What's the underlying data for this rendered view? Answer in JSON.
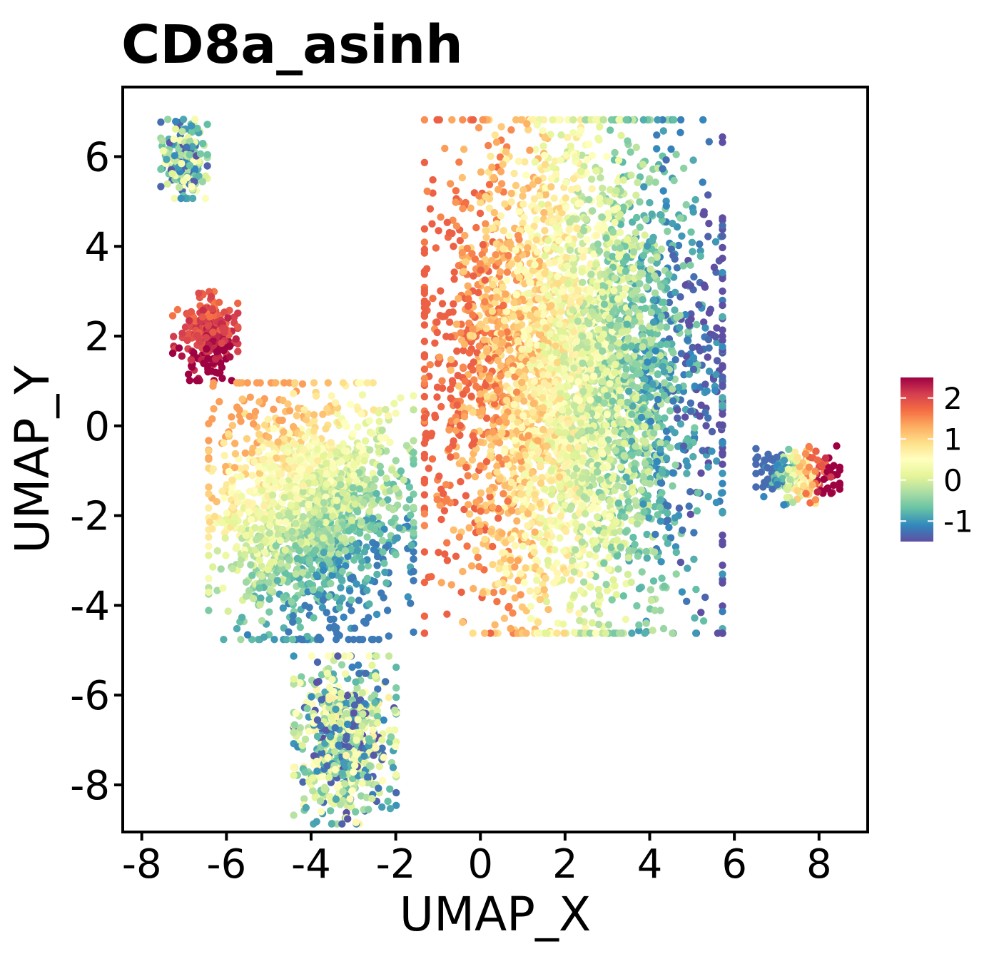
{
  "chart_data": {
    "type": "scatter",
    "title": "CD8a_asinh",
    "xlabel": "UMAP_X",
    "ylabel": "UMAP_Y",
    "xlim": [
      -8.45,
      9.15
    ],
    "ylim": [
      -9.05,
      7.55
    ],
    "x_ticks": [
      -8,
      -6,
      -4,
      -2,
      0,
      2,
      4,
      6,
      8
    ],
    "y_ticks": [
      -8,
      -6,
      -4,
      -2,
      0,
      2,
      4,
      6
    ],
    "x_tick_labels": [
      "-8",
      "-6",
      "-4",
      "-2",
      "0",
      "2",
      "4",
      "6",
      "8"
    ],
    "y_tick_labels": [
      "-8",
      "-6",
      "-4",
      "-2",
      "0",
      "2",
      "4",
      "6"
    ],
    "grid": false,
    "colorbar": {
      "placement": "right",
      "range": [
        -1.5,
        2.5
      ],
      "ticks": [
        2,
        1,
        0,
        -1
      ],
      "tick_labels": [
        "2",
        "1",
        "0",
        "-1"
      ],
      "colormap": "Spectral (reversed)",
      "colors": [
        "#5e4fa2",
        "#3288bd",
        "#66c2a5",
        "#abdda4",
        "#e6f598",
        "#ffffbf",
        "#fee08b",
        "#fdae61",
        "#f46d43",
        "#d53e4f",
        "#9e0142"
      ]
    },
    "clusters": [
      {
        "label": "top-left small cluster",
        "center": [
          -7.0,
          5.95
        ],
        "spread": [
          0.25,
          0.4
        ],
        "value_range": [
          -1.5,
          0.8
        ],
        "approx_points": 220
      },
      {
        "label": "high-expression cluster",
        "center": [
          -6.5,
          2.0
        ],
        "spread": [
          0.35,
          0.45
        ],
        "value_range": [
          0.8,
          2.5
        ],
        "approx_points": 260
      },
      {
        "label": "left large cluster",
        "center": [
          -4.0,
          -1.9
        ],
        "spread": [
          1.1,
          1.3
        ],
        "value_range": [
          -1.2,
          1.4
        ],
        "approx_points": 1600
      },
      {
        "label": "bottom cluster",
        "center": [
          -3.2,
          -7.0
        ],
        "spread": [
          0.55,
          0.85
        ],
        "value_range": [
          -1.5,
          1.0
        ],
        "approx_points": 650
      },
      {
        "label": "main cluster",
        "center": [
          2.2,
          1.1
        ],
        "spread": [
          1.6,
          2.6
        ],
        "value_range": [
          -1.5,
          1.8
        ],
        "approx_points": 4200
      },
      {
        "label": "right cluster",
        "center": [
          7.5,
          -1.1
        ],
        "spread": [
          0.45,
          0.3
        ],
        "value_range": [
          -1.3,
          2.5
        ],
        "approx_points": 220
      }
    ]
  }
}
